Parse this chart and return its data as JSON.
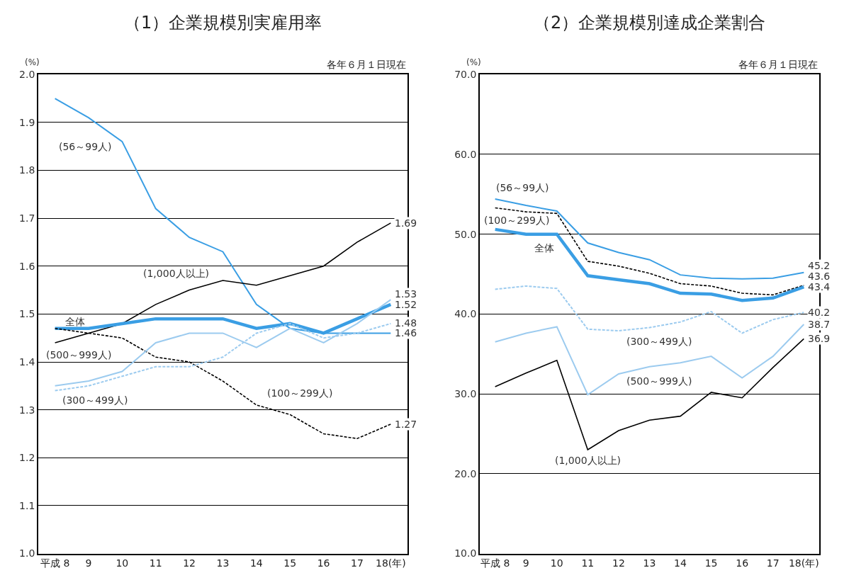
{
  "chart_data": [
    {
      "type": "line",
      "title": "（1）企業規模別実雇用率",
      "ylabel": "(%)",
      "annotations": [
        "各年６月１日現在"
      ],
      "categories": [
        "平成 8",
        "9",
        "10",
        "11",
        "12",
        "13",
        "14",
        "15",
        "16",
        "17",
        "18(年)"
      ],
      "ylim": [
        1.0,
        2.0
      ],
      "yticks": [
        {
          "value": 1.0,
          "label": "1.0"
        },
        1.1,
        1.2,
        1.3,
        1.4,
        1.5,
        1.6,
        1.7,
        1.8,
        1.9,
        {
          "value": 2.0,
          "label": "2.0"
        }
      ],
      "grid": "y",
      "series": [
        {
          "name": "(56～99人)",
          "color": "#3a9ee4",
          "line_style": "solid",
          "values": [
            1.95,
            1.91,
            1.86,
            1.72,
            1.66,
            1.63,
            1.52,
            1.47,
            1.46,
            1.46,
            1.46
          ],
          "value_labels": [
            null,
            null,
            null,
            null,
            null,
            null,
            null,
            null,
            null,
            null,
            "1.46"
          ]
        },
        {
          "name": "(1,000人以上)",
          "color": "#000000",
          "line_style": "solid",
          "values": [
            1.44,
            1.46,
            1.48,
            1.52,
            1.55,
            1.57,
            1.56,
            1.58,
            1.6,
            1.65,
            1.69
          ],
          "value_labels": [
            null,
            null,
            null,
            null,
            null,
            null,
            null,
            null,
            null,
            null,
            "1.69"
          ]
        },
        {
          "name": "全体",
          "color": "#3a9ee4",
          "line_style": "solid",
          "values": [
            1.47,
            1.47,
            1.48,
            1.49,
            1.49,
            1.49,
            1.47,
            1.48,
            1.46,
            1.49,
            1.52
          ],
          "value_labels": [
            null,
            null,
            null,
            null,
            null,
            null,
            null,
            null,
            null,
            null,
            "1.52"
          ]
        },
        {
          "name": "(100～299人)",
          "color": "#000000",
          "line_style": "dashed",
          "values": [
            1.47,
            1.46,
            1.45,
            1.41,
            1.4,
            1.36,
            1.31,
            1.29,
            1.25,
            1.24,
            1.27
          ],
          "value_labels": [
            null,
            null,
            null,
            null,
            null,
            null,
            null,
            null,
            null,
            null,
            "1.27"
          ]
        },
        {
          "name": "(500～999人)",
          "color": "#9ccbef",
          "line_style": "solid",
          "values": [
            1.35,
            1.36,
            1.38,
            1.44,
            1.46,
            1.46,
            1.43,
            1.47,
            1.44,
            1.48,
            1.53
          ],
          "value_labels": [
            null,
            null,
            null,
            null,
            null,
            null,
            null,
            null,
            null,
            null,
            "1.53"
          ]
        },
        {
          "name": "(300～499人)",
          "color": "#9ccbef",
          "line_style": "dashed",
          "values": [
            1.34,
            1.35,
            1.37,
            1.39,
            1.39,
            1.41,
            1.46,
            1.48,
            1.45,
            1.46,
            1.48
          ],
          "value_labels": [
            null,
            null,
            null,
            null,
            null,
            null,
            null,
            null,
            null,
            null,
            "1.48"
          ]
        }
      ]
    },
    {
      "type": "line",
      "title": "（2）企業規模別達成企業割合",
      "ylabel": "(%)",
      "annotations": [
        "各年６月１日現在"
      ],
      "categories": [
        "平成 8",
        "9",
        "10",
        "11",
        "12",
        "13",
        "14",
        "15",
        "16",
        "17",
        "18(年)"
      ],
      "ylim": [
        10.0,
        70.0
      ],
      "yticks": [
        {
          "value": 10,
          "label": "10.0"
        },
        {
          "value": 20,
          "label": "20.0"
        },
        {
          "value": 30,
          "label": "30.0"
        },
        {
          "value": 40,
          "label": "40.0"
        },
        {
          "value": 50,
          "label": "50.0"
        },
        {
          "value": 60,
          "label": "60.0"
        },
        {
          "value": 70,
          "label": "70.0"
        }
      ],
      "grid": "y",
      "series": [
        {
          "name": "(56～99人)",
          "color": "#3a9ee4",
          "line_style": "solid",
          "values": [
            54.4,
            53.6,
            52.9,
            48.9,
            47.7,
            46.8,
            44.9,
            44.5,
            44.4,
            44.5,
            45.2
          ],
          "value_labels": [
            null,
            null,
            null,
            null,
            null,
            null,
            null,
            null,
            null,
            null,
            "45.2"
          ]
        },
        {
          "name": "(100～299人)",
          "color": "#000000",
          "line_style": "dashed",
          "values": [
            53.3,
            52.8,
            52.6,
            46.6,
            46.0,
            45.1,
            43.8,
            43.5,
            42.6,
            42.4,
            43.6
          ],
          "value_labels": [
            null,
            null,
            null,
            null,
            null,
            null,
            null,
            null,
            null,
            null,
            "43.6"
          ]
        },
        {
          "name": "全体",
          "color": "#3a9ee4",
          "line_style": "solid",
          "values": [
            50.6,
            50.0,
            50.0,
            44.8,
            44.3,
            43.8,
            42.6,
            42.5,
            41.7,
            42.0,
            43.4
          ],
          "value_labels": [
            null,
            null,
            null,
            null,
            null,
            null,
            null,
            null,
            null,
            null,
            "43.4"
          ]
        },
        {
          "name": "(300～499人)",
          "color": "#9ccbef",
          "line_style": "dashed",
          "values": [
            43.1,
            43.5,
            43.2,
            38.1,
            37.9,
            38.3,
            39.0,
            40.3,
            37.6,
            39.3,
            40.2
          ],
          "value_labels": [
            null,
            null,
            null,
            null,
            null,
            null,
            null,
            null,
            null,
            null,
            "40.2"
          ]
        },
        {
          "name": "(500～999人)",
          "color": "#9ccbef",
          "line_style": "solid",
          "values": [
            36.5,
            37.6,
            38.4,
            29.9,
            32.5,
            33.4,
            33.9,
            34.7,
            32.0,
            34.7,
            38.7
          ],
          "value_labels": [
            null,
            null,
            null,
            null,
            null,
            null,
            null,
            null,
            null,
            null,
            "38.7"
          ]
        },
        {
          "name": "(1,000人以上)",
          "color": "#000000",
          "line_style": "solid",
          "values": [
            30.9,
            32.6,
            34.2,
            23.0,
            25.4,
            26.7,
            27.2,
            30.2,
            29.5,
            33.3,
            36.9
          ],
          "value_labels": [
            null,
            null,
            null,
            null,
            null,
            null,
            null,
            null,
            null,
            null,
            "36.9"
          ]
        }
      ]
    }
  ]
}
